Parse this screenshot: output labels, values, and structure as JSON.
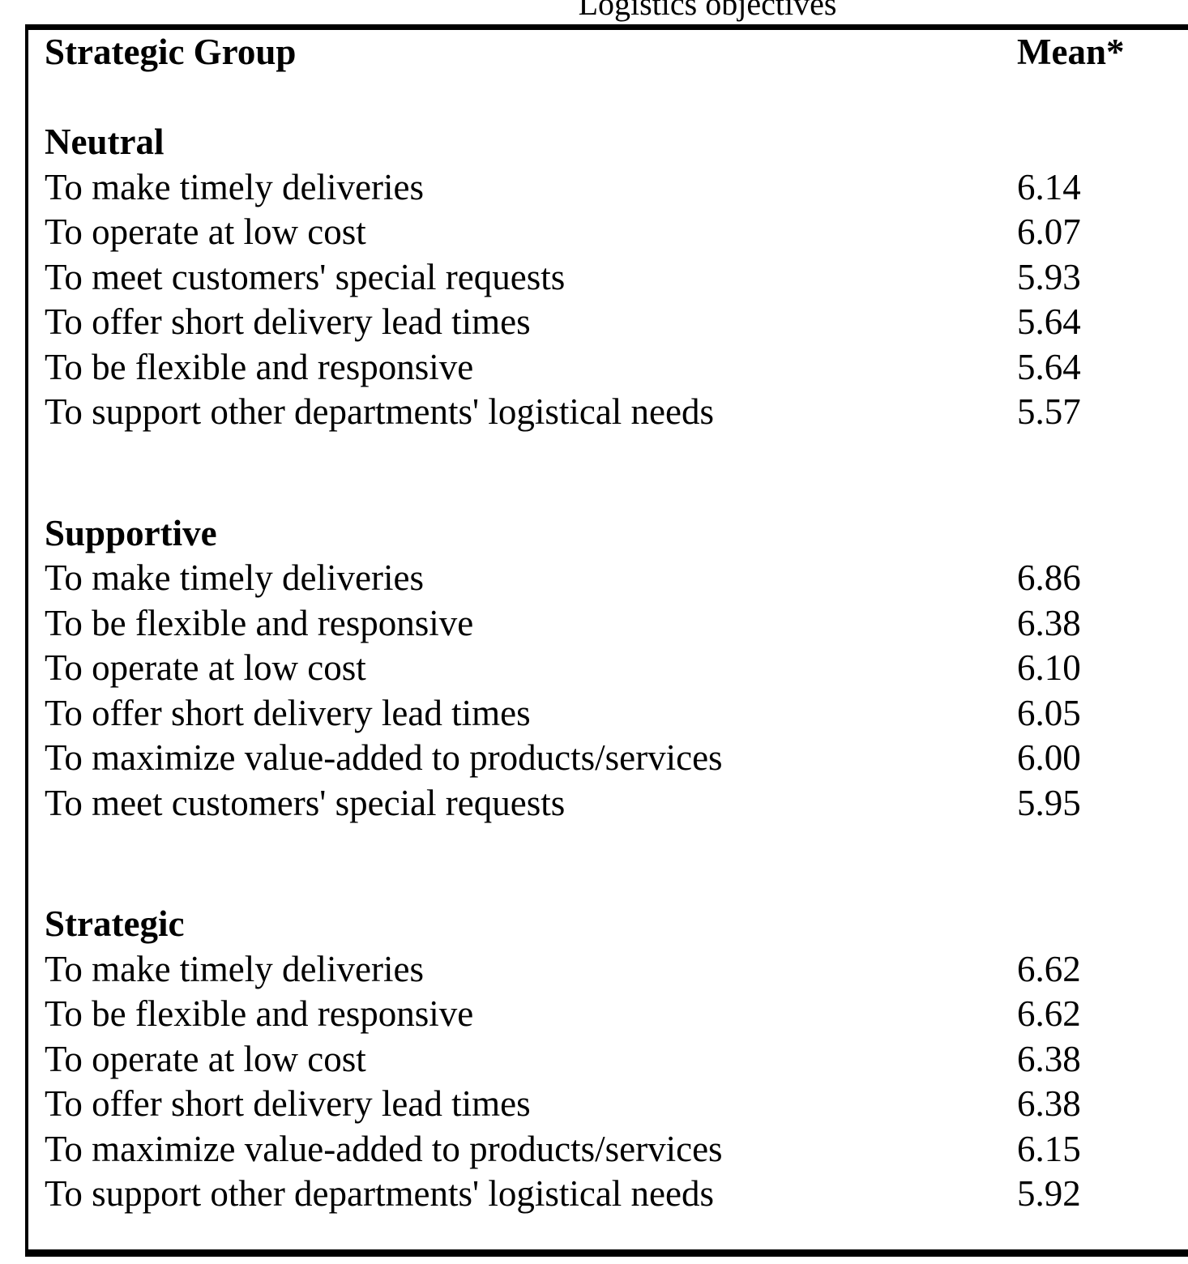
{
  "title": "Logistics objectives",
  "table": {
    "header": {
      "group": "Strategic Group",
      "mean": "Mean*"
    },
    "groups": [
      {
        "name": "Neutral",
        "rows": [
          {
            "objective": "To make timely deliveries",
            "mean": "6.14"
          },
          {
            "objective": "To operate at low cost",
            "mean": "6.07"
          },
          {
            "objective": "To meet customers' special requests",
            "mean": "5.93"
          },
          {
            "objective": "To offer short delivery lead times",
            "mean": "5.64"
          },
          {
            "objective": "To be flexible and responsive",
            "mean": "5.64"
          },
          {
            "objective": "To support other departments' logistical needs",
            "mean": "5.57"
          }
        ]
      },
      {
        "name": "Supportive",
        "rows": [
          {
            "objective": "To make timely deliveries",
            "mean": "6.86"
          },
          {
            "objective": "To be flexible and responsive",
            "mean": "6.38"
          },
          {
            "objective": "To operate at low cost",
            "mean": "6.10"
          },
          {
            "objective": "To offer short delivery lead times",
            "mean": "6.05"
          },
          {
            "objective": "To maximize value-added to products/services",
            "mean": "6.00"
          },
          {
            "objective": "To meet customers' special requests",
            "mean": "5.95"
          }
        ]
      },
      {
        "name": "Strategic",
        "rows": [
          {
            "objective": "To make timely deliveries",
            "mean": "6.62"
          },
          {
            "objective": "To be flexible and responsive",
            "mean": "6.62"
          },
          {
            "objective": "To operate at low cost",
            "mean": "6.38"
          },
          {
            "objective": "To offer short delivery lead times",
            "mean": "6.38"
          },
          {
            "objective": "To maximize value-added to products/services",
            "mean": "6.15"
          },
          {
            "objective": "To support other departments' logistical needs",
            "mean": "5.92"
          }
        ]
      }
    ]
  }
}
